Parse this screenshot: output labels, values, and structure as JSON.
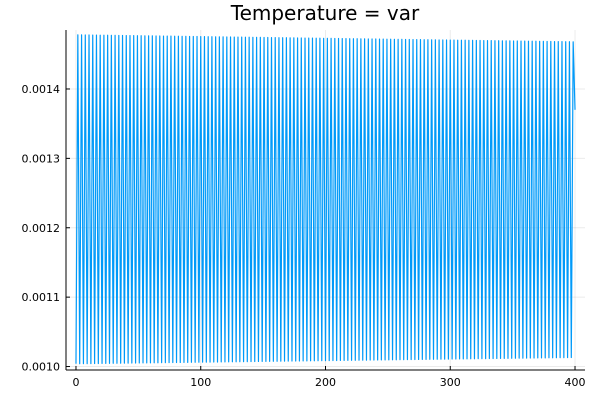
{
  "chart_data": {
    "type": "line",
    "title": "Temperature = var",
    "xlabel": "",
    "ylabel": "",
    "xlim": [
      -8,
      408
    ],
    "ylim": [
      0.000995,
      0.001485
    ],
    "x_ticks": [
      0,
      100,
      200,
      300,
      400
    ],
    "x_tick_labels": [
      "0",
      "100",
      "200",
      "300",
      "400"
    ],
    "y_ticks": [
      0.001,
      0.0011,
      0.0012,
      0.0013,
      0.0014
    ],
    "y_tick_labels": [
      "0.0010",
      "0.0011",
      "0.0012",
      "0.0013",
      "0.0014"
    ],
    "grid": true,
    "legend": "none",
    "series": [
      {
        "color": "#009af9",
        "oscillation": {
          "x_start": 0,
          "x_end": 400,
          "cycles": 134,
          "peak_start": 0.001478,
          "peak_end": 0.001468,
          "trough_start": 0.001004,
          "trough_end": 0.001013,
          "last_value": 0.00137
        }
      }
    ]
  }
}
